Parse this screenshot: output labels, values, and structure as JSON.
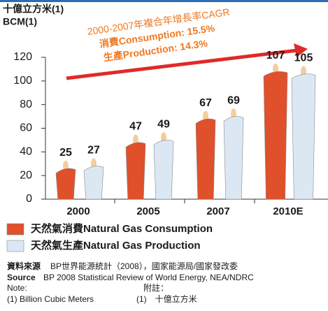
{
  "chart_data": {
    "type": "bar",
    "y_label": [
      "十億立方米(1)",
      "BCM(1)"
    ],
    "annotation": [
      "2000-2007年複合年增長率CAGR",
      "消費Consumption: 15.5%",
      "生產Production: 14.3%"
    ],
    "categories": [
      "2000",
      "2005",
      "2007",
      "2010E"
    ],
    "series": [
      {
        "name": "天然氣消費Natural Gas Consumption",
        "color": "#e0502a",
        "values": [
          25,
          47,
          67,
          107
        ]
      },
      {
        "name": "天然氣生產Natural Gas Production",
        "color": "#dbe8f3",
        "values": [
          27,
          49,
          69,
          105
        ]
      }
    ],
    "ylim": [
      0,
      120
    ],
    "yticks": [
      0,
      20,
      40,
      60,
      80,
      100,
      120
    ],
    "grid": false
  },
  "footer": {
    "source_zh_label": "資料來源",
    "source_zh": "BP世界能源統計（2008），國家能源局/國家發改委",
    "source_en_label": "Source",
    "source_en": "BP 2008 Statistical Review of World Energy, NEA/NDRC",
    "note_en_label": "Note:",
    "note_zh_label": "附註：",
    "note_en": "(1) Billion Cubic Meters",
    "note_zh": "(1)　十億立方米"
  }
}
